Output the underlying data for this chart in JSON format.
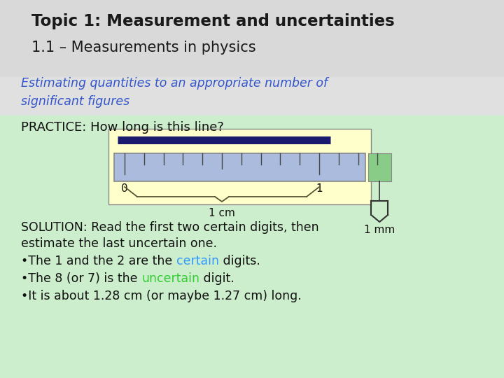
{
  "title_bold": "Topic 1: Measurement and uncertainties",
  "title_regular": "1.1 – Measurements in physics",
  "subtitle_italic": "Estimating quantities to an appropriate number of\nsignificant figures",
  "practice_text": "PRACTICE: How long is this line?",
  "solution_line1": "SOLUTION: Read the first two certain digits, then",
  "solution_line2": "estimate the last uncertain one.",
  "bullet1_pre": "•The 1 and the 2 are the ",
  "bullet1_colored": "certain",
  "bullet1_post": " digits.",
  "bullet2_pre": "•The 8 (or 7) is the ",
  "bullet2_colored": "uncertain",
  "bullet2_post": " digit.",
  "bullet3": "•It is about 1.28 cm (or maybe 1.27 cm) long.",
  "certain_color": "#3399ff",
  "uncertain_color": "#33cc33",
  "bg_top": "#d9d9d9",
  "bg_bottom": "#cceecc",
  "bg_white": "#ffffff",
  "ruler_bg": "#ffffcc",
  "ruler_bar_color": "#aabbdd",
  "ruler_border": "#888888",
  "line_color": "#1a1a6e",
  "title_color": "#1a1a1a",
  "subtitle_color": "#3355cc",
  "text_color": "#111111",
  "label_1cm": "1 cm",
  "label_1mm": "1 mm"
}
